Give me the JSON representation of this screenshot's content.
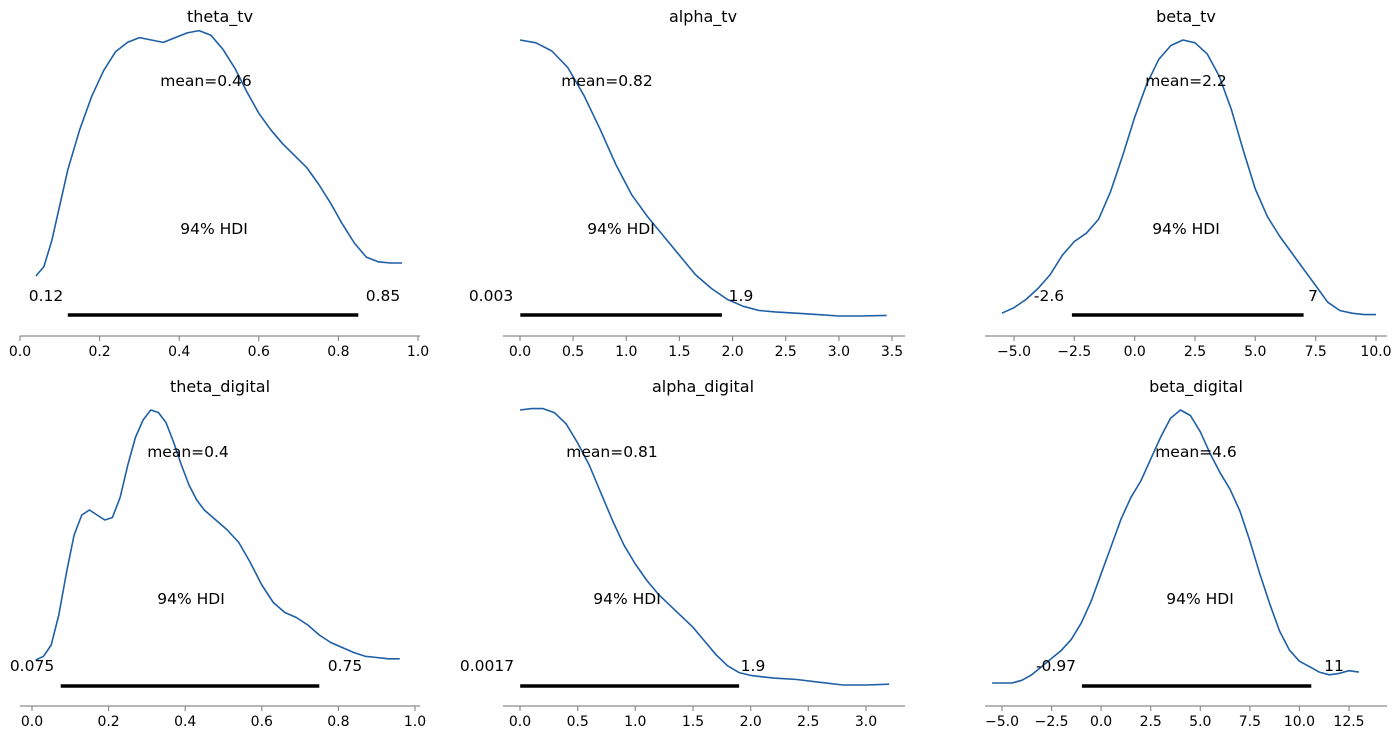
{
  "colors": {
    "kde_line": "#1f5fa5",
    "hdi_bar": "#000000",
    "axis": "#8c8c8c"
  },
  "chart_data": [
    {
      "type": "line",
      "title": "theta_tv",
      "mean_label": "mean=0.46",
      "hdi_label": "94% HDI",
      "hdi_low_label": "0.12",
      "hdi_high_label": "0.85",
      "hdi": [
        0.12,
        0.85
      ],
      "xlim": [
        0.0,
        1.0
      ],
      "xticks": [
        0.0,
        0.2,
        0.4,
        0.6,
        0.8,
        1.0
      ],
      "xtick_labels": [
        "0.0",
        "0.2",
        "0.4",
        "0.6",
        "0.8",
        "1.0"
      ],
      "ylim": [
        0,
        1
      ],
      "x": [
        0.04,
        0.06,
        0.08,
        0.1,
        0.12,
        0.15,
        0.18,
        0.21,
        0.24,
        0.27,
        0.3,
        0.33,
        0.36,
        0.39,
        0.42,
        0.45,
        0.48,
        0.51,
        0.54,
        0.57,
        0.6,
        0.63,
        0.66,
        0.69,
        0.72,
        0.75,
        0.78,
        0.81,
        0.84,
        0.87,
        0.9,
        0.93,
        0.96
      ],
      "y": [
        0.0,
        0.04,
        0.15,
        0.3,
        0.45,
        0.62,
        0.76,
        0.87,
        0.95,
        0.99,
        1.01,
        1.0,
        0.99,
        1.01,
        1.03,
        1.04,
        1.02,
        0.96,
        0.88,
        0.78,
        0.69,
        0.62,
        0.56,
        0.51,
        0.46,
        0.39,
        0.31,
        0.22,
        0.14,
        0.08,
        0.06,
        0.055,
        0.055
      ]
    },
    {
      "type": "line",
      "title": "alpha_tv",
      "mean_label": "mean=0.82",
      "hdi_label": "94% HDI",
      "hdi_low_label": "0.003",
      "hdi_high_label": "1.9",
      "hdi": [
        0.003,
        1.9
      ],
      "xlim": [
        0.0,
        3.5
      ],
      "xticks": [
        0.0,
        0.5,
        1.0,
        1.5,
        2.0,
        2.5,
        3.0,
        3.5
      ],
      "xtick_labels": [
        "0.0",
        "0.5",
        "1.0",
        "1.5",
        "2.0",
        "2.5",
        "3.0",
        "3.5"
      ],
      "ylim": [
        0,
        1
      ],
      "x": [
        0.0,
        0.15,
        0.3,
        0.45,
        0.6,
        0.75,
        0.9,
        1.05,
        1.2,
        1.35,
        1.5,
        1.65,
        1.8,
        1.95,
        2.1,
        2.25,
        2.4,
        2.6,
        2.8,
        3.0,
        3.2,
        3.45
      ],
      "y": [
        1.0,
        0.99,
        0.96,
        0.9,
        0.8,
        0.68,
        0.55,
        0.44,
        0.36,
        0.29,
        0.22,
        0.15,
        0.1,
        0.06,
        0.035,
        0.02,
        0.015,
        0.01,
        0.005,
        0.0,
        0.0,
        0.002
      ]
    },
    {
      "type": "line",
      "title": "beta_tv",
      "mean_label": "mean=2.2",
      "hdi_label": "94% HDI",
      "hdi_low_label": "-2.6",
      "hdi_high_label": "7",
      "hdi": [
        -2.6,
        7.0
      ],
      "xlim": [
        -5.0,
        10.0
      ],
      "xticks": [
        -5.0,
        -2.5,
        0.0,
        2.5,
        5.0,
        7.5,
        10.0
      ],
      "xtick_labels": [
        "−5.0",
        "−2.5",
        "0.0",
        "2.5",
        "5.0",
        "7.5",
        "10.0"
      ],
      "ylim": [
        0,
        1
      ],
      "x": [
        -5.5,
        -5.0,
        -4.5,
        -4.0,
        -3.5,
        -3.0,
        -2.5,
        -2.0,
        -1.5,
        -1.0,
        -0.5,
        0.0,
        0.5,
        1.0,
        1.5,
        2.0,
        2.5,
        3.0,
        3.5,
        4.0,
        4.5,
        5.0,
        5.5,
        6.0,
        6.5,
        7.0,
        7.5,
        8.0,
        8.5,
        9.0,
        9.5,
        10.0
      ],
      "y": [
        0.01,
        0.03,
        0.06,
        0.1,
        0.15,
        0.22,
        0.27,
        0.3,
        0.35,
        0.45,
        0.58,
        0.72,
        0.84,
        0.93,
        0.98,
        1.0,
        0.99,
        0.95,
        0.87,
        0.75,
        0.6,
        0.46,
        0.36,
        0.29,
        0.23,
        0.17,
        0.11,
        0.05,
        0.02,
        0.01,
        0.005,
        0.005
      ]
    },
    {
      "type": "line",
      "title": "theta_digital",
      "mean_label": "mean=0.4",
      "hdi_label": "94% HDI",
      "hdi_low_label": "0.075",
      "hdi_high_label": "0.75",
      "hdi": [
        0.075,
        0.75
      ],
      "xlim": [
        0.0,
        1.0
      ],
      "xticks": [
        0.0,
        0.2,
        0.4,
        0.6,
        0.8,
        1.0
      ],
      "xtick_labels": [
        "0.0",
        "0.2",
        "0.4",
        "0.6",
        "0.8",
        "1.0"
      ],
      "ylim": [
        0,
        1
      ],
      "x": [
        0.01,
        0.03,
        0.05,
        0.07,
        0.09,
        0.11,
        0.13,
        0.15,
        0.17,
        0.19,
        0.21,
        0.23,
        0.25,
        0.27,
        0.29,
        0.31,
        0.33,
        0.35,
        0.37,
        0.39,
        0.41,
        0.43,
        0.45,
        0.48,
        0.51,
        0.54,
        0.57,
        0.6,
        0.63,
        0.66,
        0.69,
        0.72,
        0.75,
        0.78,
        0.81,
        0.84,
        0.87,
        0.9,
        0.93,
        0.96
      ],
      "y": [
        0.0,
        0.015,
        0.06,
        0.18,
        0.35,
        0.5,
        0.58,
        0.6,
        0.58,
        0.56,
        0.57,
        0.65,
        0.78,
        0.89,
        0.96,
        1.0,
        0.99,
        0.95,
        0.87,
        0.78,
        0.7,
        0.64,
        0.6,
        0.56,
        0.52,
        0.47,
        0.39,
        0.3,
        0.23,
        0.19,
        0.17,
        0.14,
        0.1,
        0.07,
        0.05,
        0.03,
        0.015,
        0.01,
        0.005,
        0.005
      ]
    },
    {
      "type": "line",
      "title": "alpha_digital",
      "mean_label": "mean=0.81",
      "hdi_label": "94% HDI",
      "hdi_low_label": "0.0017",
      "hdi_high_label": "1.9",
      "hdi": [
        0.0017,
        1.9
      ],
      "xlim": [
        0.0,
        3.2
      ],
      "xticks": [
        0.0,
        0.5,
        1.0,
        1.5,
        2.0,
        2.5,
        3.0
      ],
      "xtick_labels": [
        "0.0",
        "0.5",
        "1.0",
        "1.5",
        "2.0",
        "2.5",
        "3.0"
      ],
      "ylim": [
        0,
        1
      ],
      "x": [
        0.0,
        0.1,
        0.2,
        0.3,
        0.4,
        0.5,
        0.6,
        0.7,
        0.8,
        0.9,
        1.0,
        1.1,
        1.2,
        1.3,
        1.4,
        1.5,
        1.6,
        1.7,
        1.8,
        1.9,
        2.0,
        2.1,
        2.2,
        2.4,
        2.6,
        2.8,
        3.0,
        3.2
      ],
      "y": [
        1.0,
        1.005,
        1.005,
        0.99,
        0.95,
        0.88,
        0.8,
        0.7,
        0.6,
        0.51,
        0.44,
        0.38,
        0.33,
        0.29,
        0.25,
        0.21,
        0.16,
        0.11,
        0.07,
        0.045,
        0.035,
        0.03,
        0.025,
        0.02,
        0.01,
        0.0,
        0.0,
        0.003
      ]
    },
    {
      "type": "line",
      "title": "beta_digital",
      "mean_label": "mean=4.6",
      "hdi_label": "94% HDI",
      "hdi_low_label": "-0.97",
      "hdi_high_label": "11",
      "hdi": [
        -0.97,
        10.6
      ],
      "xlim": [
        -5.0,
        12.5
      ],
      "xticks": [
        -5.0,
        -2.5,
        0.0,
        2.5,
        5.0,
        7.5,
        10.0,
        12.5
      ],
      "xtick_labels": [
        "−5.0",
        "−2.5",
        "0.0",
        "2.5",
        "5.0",
        "7.5",
        "10.0",
        "12.5"
      ],
      "ylim": [
        0,
        1
      ],
      "x": [
        -5.5,
        -5.0,
        -4.5,
        -4.0,
        -3.5,
        -3.0,
        -2.5,
        -2.0,
        -1.5,
        -1.0,
        -0.5,
        0.0,
        0.5,
        1.0,
        1.5,
        2.0,
        2.5,
        3.0,
        3.5,
        4.0,
        4.5,
        5.0,
        5.5,
        6.0,
        6.5,
        7.0,
        7.5,
        8.0,
        8.5,
        9.0,
        9.5,
        10.0,
        10.5,
        11.0,
        11.5,
        12.0,
        12.5,
        13.0
      ],
      "y": [
        0.0,
        0.0,
        0.0,
        0.01,
        0.03,
        0.06,
        0.09,
        0.12,
        0.16,
        0.22,
        0.3,
        0.4,
        0.5,
        0.6,
        0.68,
        0.74,
        0.82,
        0.9,
        0.97,
        1.0,
        0.98,
        0.92,
        0.84,
        0.77,
        0.71,
        0.63,
        0.52,
        0.4,
        0.29,
        0.19,
        0.12,
        0.08,
        0.06,
        0.04,
        0.03,
        0.035,
        0.045,
        0.04
      ]
    }
  ]
}
